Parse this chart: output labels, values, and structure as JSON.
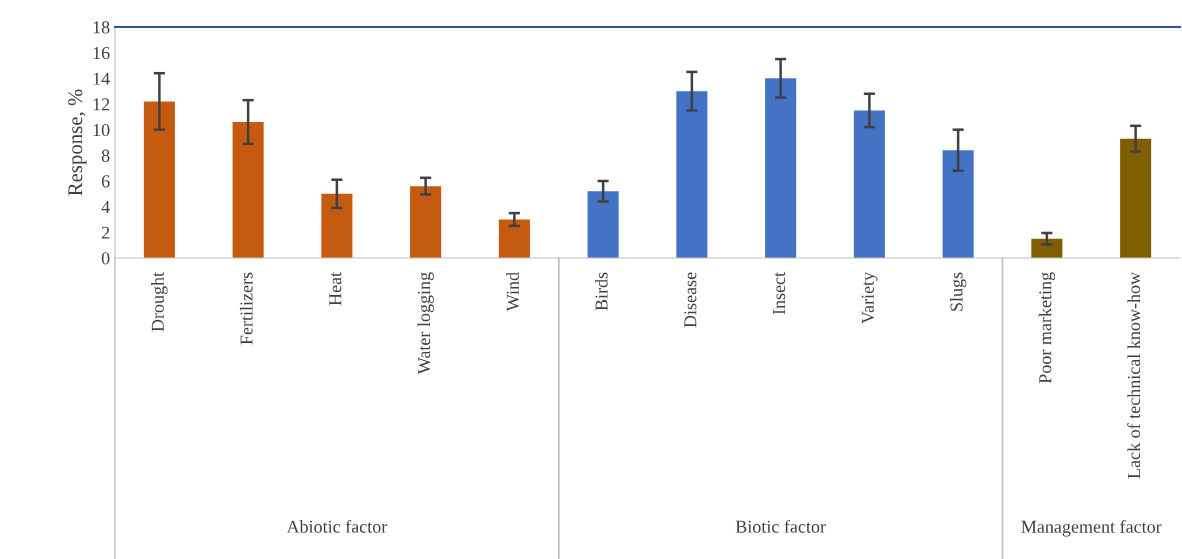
{
  "chart_data": {
    "type": "bar",
    "ylabel": "Response, %",
    "categories": [
      "Drought",
      "Fertilizers",
      "Heat",
      "Water logging",
      "Wind",
      "Birds",
      "Disease",
      "Insect",
      "Variety",
      "Slugs",
      "Poor marketing",
      "Lack of technical know-how"
    ],
    "values": [
      12.2,
      10.6,
      5.0,
      5.6,
      3.0,
      5.2,
      13.0,
      14.0,
      11.5,
      8.4,
      1.5,
      9.3
    ],
    "errors": [
      2.2,
      1.7,
      1.1,
      0.65,
      0.5,
      0.8,
      1.5,
      1.5,
      1.3,
      1.6,
      0.45,
      1.0
    ],
    "colors": [
      "#c55a11",
      "#c55a11",
      "#c55a11",
      "#c55a11",
      "#c55a11",
      "#4472c4",
      "#4472c4",
      "#4472c4",
      "#4472c4",
      "#4472c4",
      "#7f6000",
      "#7f6000"
    ],
    "annotations": [
      "Abiotic factor",
      "Biotic factor",
      "Management factor"
    ],
    "ylim": [
      0,
      18
    ],
    "yticks": [
      0,
      2,
      4,
      6,
      8,
      10,
      12,
      14,
      16,
      18
    ],
    "grid": false,
    "legend": false
  }
}
